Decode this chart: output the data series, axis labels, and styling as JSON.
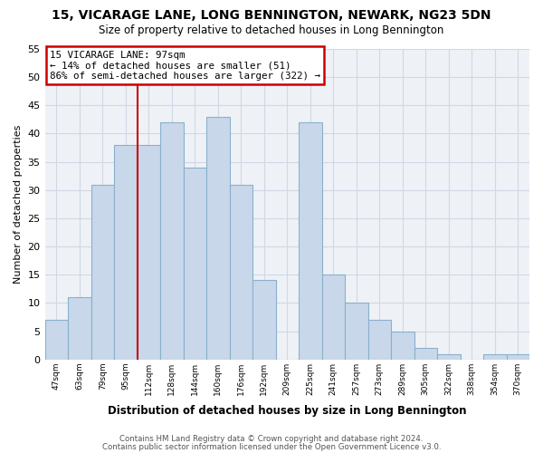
{
  "title": "15, VICARAGE LANE, LONG BENNINGTON, NEWARK, NG23 5DN",
  "subtitle": "Size of property relative to detached houses in Long Bennington",
  "xlabel": "Distribution of detached houses by size in Long Bennington",
  "ylabel": "Number of detached properties",
  "bar_labels": [
    "47sqm",
    "63sqm",
    "79sqm",
    "95sqm",
    "112sqm",
    "128sqm",
    "144sqm",
    "160sqm",
    "176sqm",
    "192sqm",
    "209sqm",
    "225sqm",
    "241sqm",
    "257sqm",
    "273sqm",
    "289sqm",
    "305sqm",
    "322sqm",
    "338sqm",
    "354sqm",
    "370sqm"
  ],
  "bar_values": [
    7,
    11,
    31,
    38,
    38,
    42,
    34,
    43,
    31,
    14,
    0,
    42,
    15,
    10,
    7,
    5,
    2,
    1,
    0,
    1,
    1
  ],
  "bar_color": "#c8d8ea",
  "bar_edge_color": "#8ab0cc",
  "ylim": [
    0,
    55
  ],
  "yticks": [
    0,
    5,
    10,
    15,
    20,
    25,
    30,
    35,
    40,
    45,
    50,
    55
  ],
  "property_line_x": 3.5,
  "property_line_label": "15 VICARAGE LANE: 97sqm",
  "annotation_line1": "← 14% of detached houses are smaller (51)",
  "annotation_line2": "86% of semi-detached houses are larger (322) →",
  "annotation_box_color": "#ffffff",
  "annotation_box_edge": "#cc0000",
  "vline_color": "#cc0000",
  "footer1": "Contains HM Land Registry data © Crown copyright and database right 2024.",
  "footer2": "Contains public sector information licensed under the Open Government Licence v3.0.",
  "background_color": "#ffffff",
  "plot_background": "#eef2f7",
  "grid_color": "#d0d8e4"
}
